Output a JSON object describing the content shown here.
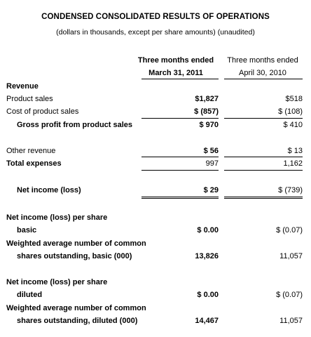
{
  "title": "CONDENSED CONSOLIDATED RESULTS OF OPERATIONS",
  "subtitle": "(dollars in thousands, except per share amounts) (unaudited)",
  "columns": {
    "col1": {
      "line1": "Three months ended",
      "line2": "March 31, 2011"
    },
    "col2": {
      "line1": "Three months ended",
      "line2": "April 30, 2010"
    }
  },
  "rows": [
    {
      "label": "Revenue",
      "v1": "",
      "v2": ""
    },
    {
      "label": "Product sales",
      "v1": "$1,827",
      "v2": "$518"
    },
    {
      "label": "Cost of product sales",
      "v1": "$ (857)",
      "v2": "$ (108)"
    },
    {
      "label": "Gross profit from product sales",
      "v1": "$ 970",
      "v2": "$ 410"
    },
    {
      "label": "Other revenue",
      "v1": "$ 56",
      "v2": "$ 13"
    },
    {
      "label": "Total expenses",
      "v1": "997",
      "v2": "1,162"
    },
    {
      "label": "Net income (loss)",
      "v1": "$ 29",
      "v2": "$ (739)"
    },
    {
      "label": "Net income (loss) per share",
      "v1": "",
      "v2": ""
    },
    {
      "label": "basic",
      "v1": "$ 0.00",
      "v2": "$ (0.07)"
    },
    {
      "label": "Weighted average number of common",
      "v1": "",
      "v2": ""
    },
    {
      "label": "shares outstanding, basic (000)",
      "v1": "13,826",
      "v2": "11,057"
    },
    {
      "label": "Net income (loss) per share",
      "v1": "",
      "v2": ""
    },
    {
      "label": "diluted",
      "v1": "$ 0.00",
      "v2": "$ (0.07)"
    },
    {
      "label": "Weighted average number of common",
      "v1": "",
      "v2": ""
    },
    {
      "label": "shares outstanding, diluted (000)",
      "v1": "14,467",
      "v2": "11,057"
    }
  ]
}
